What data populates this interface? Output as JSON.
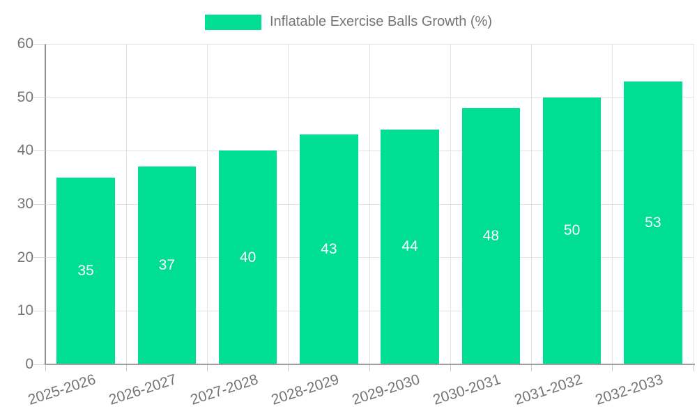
{
  "legend": {
    "label": "Inflatable Exercise Balls Growth (%)"
  },
  "chart_data": {
    "type": "bar",
    "title": "Inflatable Exercise Balls Growth (%)",
    "categories": [
      "2025-2026",
      "2026-2027",
      "2027-2028",
      "2028-2029",
      "2029-2030",
      "2030-2031",
      "2031-2032",
      "2032-2033"
    ],
    "values": [
      35,
      37,
      40,
      43,
      44,
      48,
      50,
      53
    ],
    "series": [
      {
        "name": "Inflatable Exercise Balls Growth (%)",
        "values": [
          35,
          37,
          40,
          43,
          44,
          48,
          50,
          53
        ]
      }
    ],
    "xlabel": "",
    "ylabel": "",
    "ylim": [
      0,
      60
    ],
    "yticks": [
      0,
      10,
      20,
      30,
      40,
      50,
      60
    ],
    "grid": true,
    "legend_position": "top",
    "value_labels_shown": true,
    "bar_color": "#00de94",
    "value_label_color": "#ffffff",
    "grid_color": "#e4e4e4",
    "axis_color": "#9e9e9e",
    "tick_label_color": "#757575",
    "x_label_rotation_deg": -18
  }
}
